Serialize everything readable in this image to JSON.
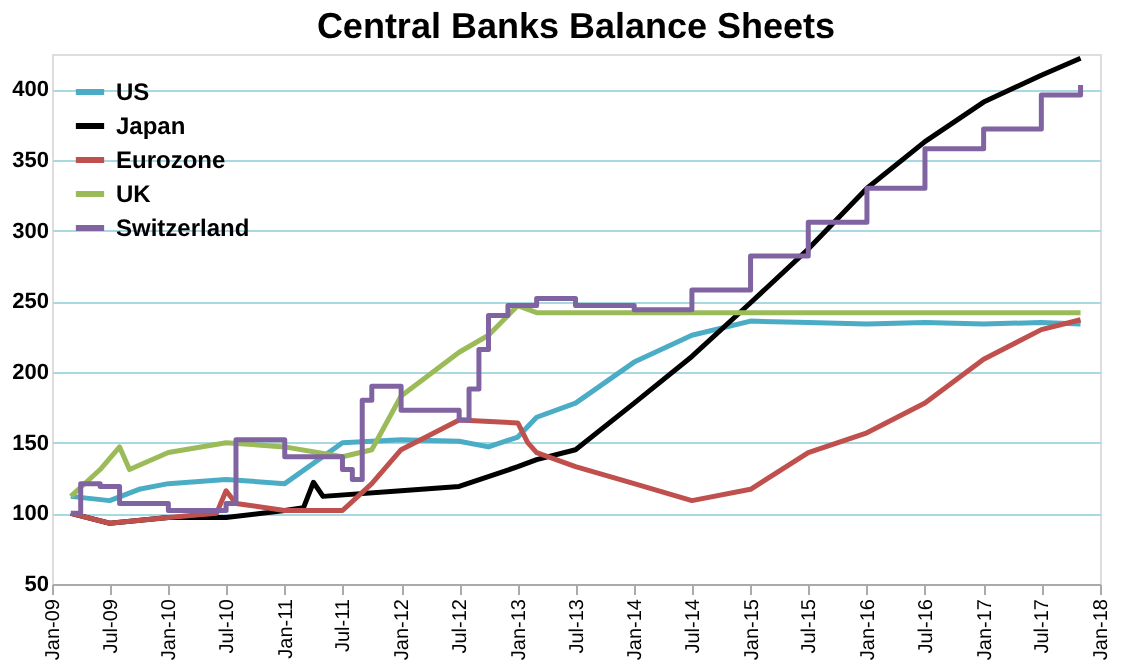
{
  "chart_data": {
    "type": "line",
    "title": "Central Banks Balance Sheets",
    "xlim": [
      "2009-01",
      "2018-01"
    ],
    "xticks": [
      {
        "value": "2009-01",
        "label": "Jan-09"
      },
      {
        "value": "2009-07",
        "label": "Jul-09"
      },
      {
        "value": "2010-01",
        "label": "Jan-10"
      },
      {
        "value": "2010-07",
        "label": "Jul-10"
      },
      {
        "value": "2011-01",
        "label": "Jan-11"
      },
      {
        "value": "2011-07",
        "label": "Jul-11"
      },
      {
        "value": "2012-01",
        "label": "Jan-12"
      },
      {
        "value": "2012-07",
        "label": "Jul-12"
      },
      {
        "value": "2013-01",
        "label": "Jan-13"
      },
      {
        "value": "2013-07",
        "label": "Jul-13"
      },
      {
        "value": "2014-01",
        "label": "Jan-14"
      },
      {
        "value": "2014-07",
        "label": "Jul-14"
      },
      {
        "value": "2015-01",
        "label": "Jan-15"
      },
      {
        "value": "2015-07",
        "label": "Jul-15"
      },
      {
        "value": "2016-01",
        "label": "Jan-16"
      },
      {
        "value": "2016-07",
        "label": "Jul-16"
      },
      {
        "value": "2017-01",
        "label": "Jan-17"
      },
      {
        "value": "2017-07",
        "label": "Jul-17"
      },
      {
        "value": "2018-01",
        "label": "Jan-18"
      }
    ],
    "ylim": [
      50,
      425
    ],
    "yticks": [
      50,
      100,
      150,
      200,
      250,
      300,
      350,
      400
    ],
    "grid": "y",
    "legend": "top left",
    "line_style": "solid",
    "series": [
      {
        "name": "US",
        "color": "#4bacc6",
        "x": [
          "2009-03",
          "2009-07",
          "2009-10",
          "2010-01",
          "2010-07",
          "2011-01",
          "2011-07",
          "2012-01",
          "2012-07",
          "2012-10",
          "2013-01",
          "2013-03",
          "2013-07",
          "2014-01",
          "2014-07",
          "2015-01",
          "2015-07",
          "2016-01",
          "2016-07",
          "2017-01",
          "2017-07",
          "2017-11"
        ],
        "values": [
          112,
          109,
          117,
          121,
          124,
          121,
          150,
          152,
          151,
          147,
          154,
          168,
          178,
          207,
          226,
          236,
          235,
          234,
          235,
          234,
          235,
          234
        ]
      },
      {
        "name": "Japan",
        "color": "#000000",
        "x": [
          "2009-03",
          "2009-07",
          "2010-01",
          "2010-07",
          "2011-01",
          "2011-03",
          "2011-04",
          "2011-05",
          "2012-01",
          "2012-07",
          "2013-01",
          "2013-03",
          "2013-07",
          "2014-01",
          "2014-07",
          "2015-01",
          "2015-07",
          "2016-01",
          "2016-07",
          "2017-01",
          "2017-07",
          "2017-11"
        ],
        "values": [
          100,
          93,
          97,
          97,
          102,
          104,
          122,
          112,
          116,
          119,
          133,
          138,
          145,
          178,
          211,
          249,
          287,
          330,
          363,
          391,
          410,
          422
        ]
      },
      {
        "name": "Eurozone",
        "color": "#c0504d",
        "x": [
          "2009-03",
          "2009-07",
          "2010-01",
          "2010-06",
          "2010-07",
          "2010-08",
          "2011-01",
          "2011-07",
          "2011-10",
          "2012-01",
          "2012-07",
          "2013-01",
          "2013-02",
          "2013-03",
          "2013-07",
          "2014-01",
          "2014-07",
          "2015-01",
          "2015-07",
          "2016-01",
          "2016-07",
          "2017-01",
          "2017-07",
          "2017-11"
        ],
        "values": [
          100,
          93,
          97,
          100,
          116,
          107,
          102,
          102,
          121,
          145,
          166,
          164,
          150,
          143,
          133,
          121,
          109,
          117,
          143,
          157,
          178,
          209,
          230,
          237
        ]
      },
      {
        "name": "UK",
        "color": "#9bbb59",
        "x": [
          "2009-03",
          "2009-06",
          "2009-08",
          "2009-09",
          "2010-01",
          "2010-07",
          "2011-01",
          "2011-07",
          "2011-10",
          "2012-01",
          "2012-07",
          "2012-10",
          "2013-01",
          "2013-03",
          "2014-01",
          "2015-01",
          "2016-01",
          "2017-01",
          "2017-11"
        ],
        "values": [
          112,
          131,
          147,
          131,
          143,
          150,
          147,
          140,
          145,
          183,
          214,
          226,
          247,
          242,
          242,
          242,
          242,
          242,
          242
        ]
      },
      {
        "name": "Switzerland",
        "color": "#8064a2",
        "type": "step",
        "x": [
          "2009-03",
          "2009-04",
          "2009-06",
          "2009-08",
          "2010-01",
          "2010-07",
          "2010-08",
          "2011-01",
          "2011-07",
          "2011-08",
          "2011-09",
          "2011-10",
          "2012-01",
          "2012-07",
          "2012-08",
          "2012-09",
          "2012-10",
          "2012-12",
          "2013-03",
          "2013-07",
          "2014-01",
          "2014-07",
          "2015-01",
          "2015-07",
          "2016-01",
          "2016-07",
          "2017-01",
          "2017-07",
          "2017-11"
        ],
        "values": [
          100,
          121,
          119,
          107,
          102,
          107,
          152,
          140,
          131,
          124,
          180,
          190,
          173,
          166,
          188,
          216,
          240,
          247,
          252,
          247,
          244,
          258,
          282,
          306,
          330,
          358,
          372,
          396,
          403
        ]
      }
    ]
  }
}
